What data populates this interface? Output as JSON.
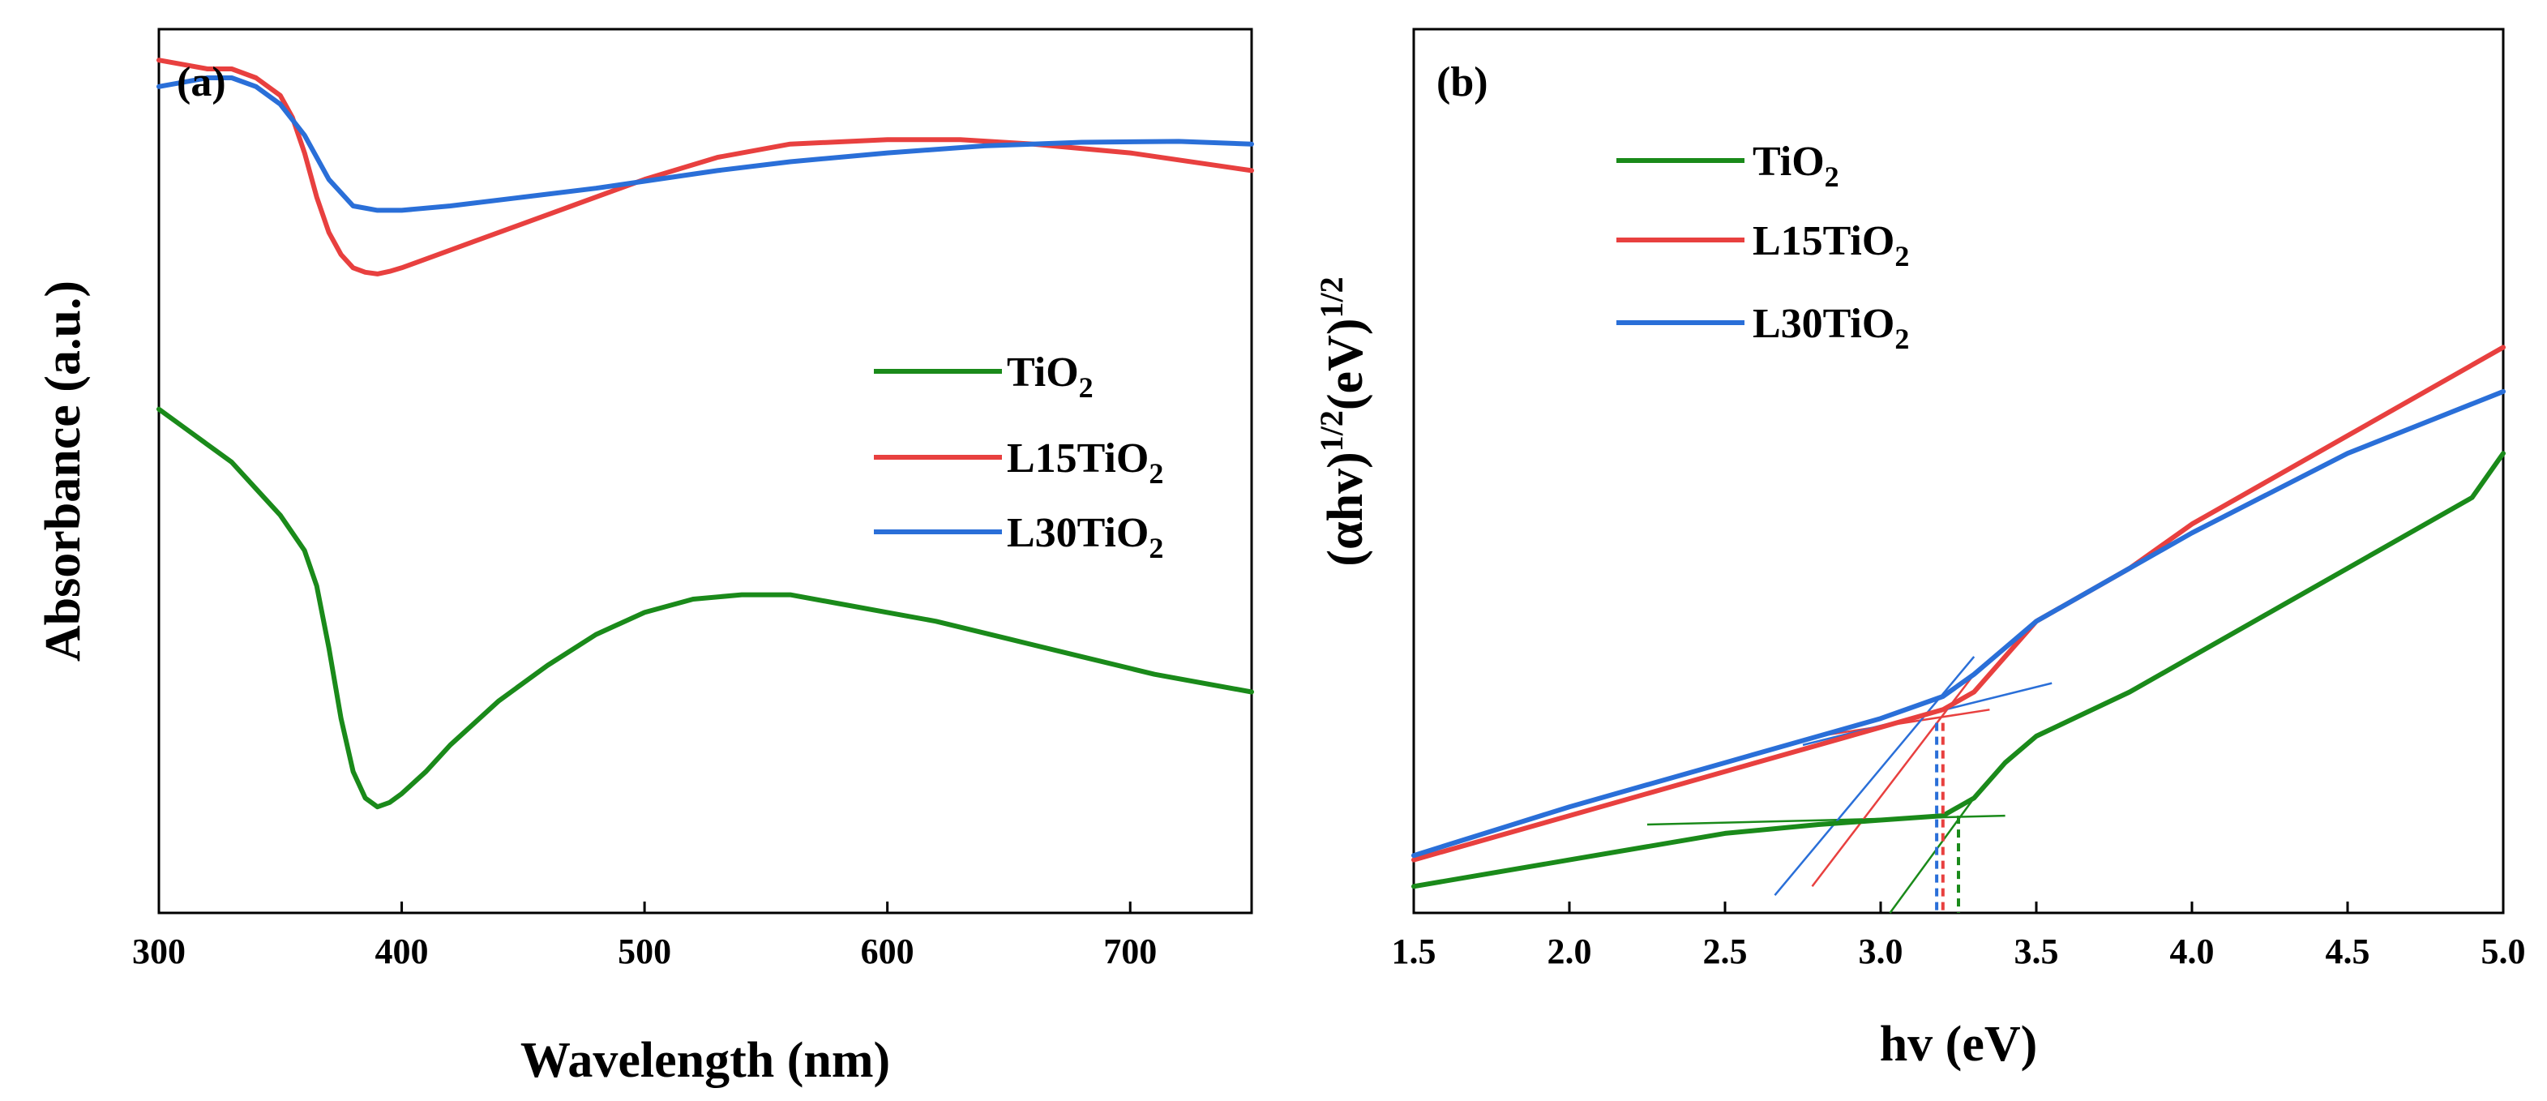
{
  "chart_data": [
    {
      "type": "line",
      "panel_label": "(a)",
      "xlabel": "Wavelength (nm)",
      "ylabel": "Absorbance (a.u.)",
      "xlim": [
        300,
        750
      ],
      "ylim": [
        0,
        1
      ],
      "x_ticks": [
        300,
        400,
        500,
        600,
        700
      ],
      "x_tick_labels": [
        "300",
        "400",
        "500",
        "600",
        "700"
      ],
      "y_ticks_shown": false,
      "legend_position": "center-right",
      "series": [
        {
          "name": "TiO2",
          "label_main": "TiO",
          "label_sub": "2",
          "color": "#1a8a1a",
          "x": [
            300,
            310,
            320,
            330,
            340,
            350,
            360,
            365,
            370,
            375,
            380,
            385,
            390,
            395,
            400,
            410,
            420,
            440,
            460,
            480,
            500,
            520,
            540,
            560,
            580,
            600,
            620,
            650,
            680,
            710,
            750
          ],
          "y": [
            0.57,
            0.55,
            0.53,
            0.51,
            0.48,
            0.45,
            0.41,
            0.37,
            0.3,
            0.22,
            0.16,
            0.13,
            0.12,
            0.125,
            0.135,
            0.16,
            0.19,
            0.24,
            0.28,
            0.315,
            0.34,
            0.355,
            0.36,
            0.36,
            0.35,
            0.34,
            0.33,
            0.31,
            0.29,
            0.27,
            0.25
          ]
        },
        {
          "name": "L15TiO2",
          "label_main": "L15TiO",
          "label_sub": "2",
          "color": "#e8403f",
          "x": [
            300,
            310,
            320,
            330,
            340,
            350,
            355,
            360,
            365,
            370,
            375,
            380,
            385,
            390,
            395,
            400,
            410,
            430,
            450,
            470,
            500,
            530,
            560,
            600,
            630,
            660,
            700,
            750
          ],
          "y": [
            0.965,
            0.96,
            0.955,
            0.955,
            0.945,
            0.925,
            0.9,
            0.86,
            0.81,
            0.77,
            0.745,
            0.73,
            0.725,
            0.723,
            0.726,
            0.73,
            0.74,
            0.76,
            0.78,
            0.8,
            0.83,
            0.855,
            0.87,
            0.875,
            0.875,
            0.87,
            0.86,
            0.84
          ]
        },
        {
          "name": "L30TiO2",
          "label_main": "L30TiO",
          "label_sub": "2",
          "color": "#2a6fd8",
          "x": [
            300,
            310,
            320,
            330,
            340,
            350,
            360,
            370,
            380,
            390,
            400,
            420,
            450,
            480,
            500,
            530,
            560,
            600,
            640,
            680,
            720,
            750
          ],
          "y": [
            0.935,
            0.94,
            0.945,
            0.945,
            0.935,
            0.915,
            0.88,
            0.83,
            0.8,
            0.795,
            0.795,
            0.8,
            0.81,
            0.82,
            0.828,
            0.84,
            0.85,
            0.86,
            0.868,
            0.872,
            0.873,
            0.87
          ]
        }
      ]
    },
    {
      "type": "line",
      "panel_label": "(b)",
      "xlabel": "hv (eV)",
      "ylabel_main": "(αhv)",
      "ylabel_sup1": "1/2",
      "ylabel_mid": "(eV)",
      "ylabel_sup2": "1/2",
      "xlim": [
        1.5,
        5.0
      ],
      "ylim": [
        0,
        1
      ],
      "x_ticks": [
        1.5,
        2.0,
        2.5,
        3.0,
        3.5,
        4.0,
        4.5,
        5.0
      ],
      "x_tick_labels": [
        "1.5",
        "2.0",
        "2.5",
        "3.0",
        "3.5",
        "4.0",
        "4.5",
        "5.0"
      ],
      "y_ticks_shown": false,
      "legend_position": "top-left",
      "band_gaps_eV": {
        "TiO2": 3.25,
        "L15TiO2": 3.2,
        "L30TiO2": 3.18
      },
      "series": [
        {
          "name": "TiO2",
          "label_main": "TiO",
          "label_sub": "2",
          "color": "#1a8a1a",
          "x": [
            1.5,
            2.0,
            2.5,
            2.8,
            3.0,
            3.2,
            3.3,
            3.4,
            3.5,
            3.8,
            4.0,
            4.3,
            4.6,
            4.9,
            5.0
          ],
          "y": [
            0.03,
            0.06,
            0.09,
            0.1,
            0.105,
            0.11,
            0.13,
            0.17,
            0.2,
            0.25,
            0.29,
            0.35,
            0.41,
            0.47,
            0.52
          ]
        },
        {
          "name": "L15TiO2",
          "label_main": "L15TiO",
          "label_sub": "2",
          "color": "#e8403f",
          "x": [
            1.5,
            2.0,
            2.5,
            3.0,
            3.2,
            3.3,
            3.4,
            3.5,
            3.8,
            4.0,
            4.5,
            5.0
          ],
          "y": [
            0.06,
            0.11,
            0.16,
            0.21,
            0.23,
            0.25,
            0.29,
            0.33,
            0.39,
            0.44,
            0.54,
            0.64
          ]
        },
        {
          "name": "L30TiO2",
          "label_main": "L30TiO",
          "label_sub": "2",
          "color": "#2a6fd8",
          "x": [
            1.5,
            2.0,
            2.5,
            3.0,
            3.2,
            3.3,
            3.4,
            3.5,
            3.8,
            4.0,
            4.5,
            5.0
          ],
          "y": [
            0.065,
            0.12,
            0.17,
            0.22,
            0.245,
            0.27,
            0.3,
            0.33,
            0.39,
            0.43,
            0.52,
            0.59
          ]
        }
      ],
      "tangent_lines": [
        {
          "name": "TiO2-baseline",
          "color": "#1a8a1a",
          "x": [
            2.25,
            3.4
          ],
          "y": [
            0.1,
            0.11
          ]
        },
        {
          "name": "TiO2-edge",
          "color": "#1a8a1a",
          "x": [
            3.03,
            3.3
          ],
          "y": [
            0.0,
            0.13
          ]
        },
        {
          "name": "L15TiO2-baseline",
          "color": "#e8403f",
          "x": [
            2.8,
            3.35
          ],
          "y": [
            0.2,
            0.23
          ]
        },
        {
          "name": "L15TiO2-edge",
          "color": "#e8403f",
          "x": [
            2.78,
            3.3
          ],
          "y": [
            0.03,
            0.27
          ]
        },
        {
          "name": "L30TiO2-baseline",
          "color": "#2a6fd8",
          "x": [
            2.75,
            3.55
          ],
          "y": [
            0.19,
            0.26
          ]
        },
        {
          "name": "L30TiO2-edge",
          "color": "#2a6fd8",
          "x": [
            2.66,
            3.3
          ],
          "y": [
            0.02,
            0.29
          ]
        }
      ]
    }
  ]
}
